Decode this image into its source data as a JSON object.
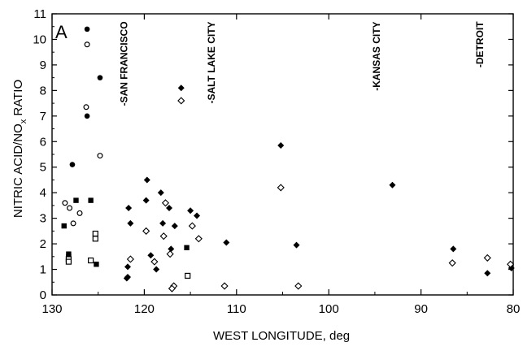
{
  "chart_data": {
    "type": "scatter",
    "panel_label": "A",
    "xlabel": "WEST LONGITUDE, deg",
    "ylabel_main": "NITRIC ACID/NO",
    "ylabel_sub": "x",
    "ylabel_tail": " RATIO",
    "xlim": [
      130,
      80
    ],
    "ylim": [
      0,
      11
    ],
    "xticks": [
      130,
      120,
      110,
      100,
      90,
      80
    ],
    "yticks": [
      0,
      1,
      2,
      3,
      4,
      5,
      6,
      7,
      8,
      9,
      10,
      11
    ],
    "grid": false,
    "cities": [
      {
        "label": "-SAN FRANCISCO",
        "x": 122.2,
        "y_top": 10.7
      },
      {
        "label": "-SALT LAKE CITY",
        "x": 112.7,
        "y_top": 10.7
      },
      {
        "label": "-KANSAS CITY",
        "x": 94.8,
        "y_top": 10.7
      },
      {
        "label": "-DETROIT",
        "x": 83.6,
        "y_top": 10.7
      }
    ],
    "series": [
      {
        "marker": "filled-circle",
        "points": [
          [
            126.2,
            10.4
          ],
          [
            124.8,
            8.5
          ],
          [
            126.2,
            7.0
          ],
          [
            127.8,
            5.1
          ]
        ]
      },
      {
        "marker": "open-circle",
        "points": [
          [
            126.2,
            9.8
          ],
          [
            126.3,
            7.35
          ],
          [
            124.8,
            5.45
          ],
          [
            128.6,
            3.6
          ],
          [
            128.1,
            3.4
          ],
          [
            127.7,
            2.8
          ],
          [
            127.0,
            3.2
          ]
        ]
      },
      {
        "marker": "filled-square",
        "points": [
          [
            128.7,
            2.7
          ],
          [
            128.2,
            1.6
          ],
          [
            128.2,
            1.5
          ],
          [
            127.4,
            3.7
          ],
          [
            125.8,
            3.7
          ],
          [
            125.2,
            1.2
          ],
          [
            115.4,
            1.85
          ]
        ]
      },
      {
        "marker": "open-square",
        "points": [
          [
            128.2,
            1.4
          ],
          [
            128.2,
            1.3
          ],
          [
            125.3,
            2.4
          ],
          [
            125.3,
            2.2
          ],
          [
            125.8,
            1.35
          ],
          [
            115.3,
            0.75
          ]
        ]
      },
      {
        "marker": "filled-diamond",
        "points": [
          [
            121.7,
            3.4
          ],
          [
            121.5,
            2.8
          ],
          [
            119.7,
            4.5
          ],
          [
            119.8,
            3.7
          ],
          [
            118.2,
            4.0
          ],
          [
            118.0,
            2.8
          ],
          [
            117.3,
            3.4
          ],
          [
            116.7,
            2.7
          ],
          [
            119.3,
            1.55
          ],
          [
            118.7,
            1.0
          ],
          [
            117.1,
            1.8
          ],
          [
            121.8,
            1.1
          ],
          [
            121.8,
            0.7
          ],
          [
            121.9,
            0.65
          ],
          [
            116.0,
            8.1
          ],
          [
            115.0,
            3.3
          ],
          [
            114.3,
            3.1
          ],
          [
            111.1,
            2.05
          ],
          [
            105.2,
            5.85
          ],
          [
            103.5,
            1.95
          ],
          [
            93.1,
            4.3
          ],
          [
            86.5,
            1.8
          ],
          [
            82.8,
            0.85
          ],
          [
            80.2,
            1.05
          ]
        ]
      },
      {
        "marker": "open-diamond",
        "points": [
          [
            121.5,
            1.4
          ],
          [
            119.8,
            2.5
          ],
          [
            118.9,
            1.3
          ],
          [
            117.7,
            3.6
          ],
          [
            117.9,
            2.3
          ],
          [
            117.2,
            1.6
          ],
          [
            116.8,
            0.35
          ],
          [
            117.0,
            0.25
          ],
          [
            116.0,
            7.6
          ],
          [
            114.8,
            2.7
          ],
          [
            114.1,
            2.2
          ],
          [
            111.3,
            0.35
          ],
          [
            105.2,
            4.2
          ],
          [
            103.3,
            0.35
          ],
          [
            86.6,
            1.25
          ],
          [
            82.8,
            1.45
          ],
          [
            80.3,
            1.2
          ]
        ]
      }
    ]
  }
}
